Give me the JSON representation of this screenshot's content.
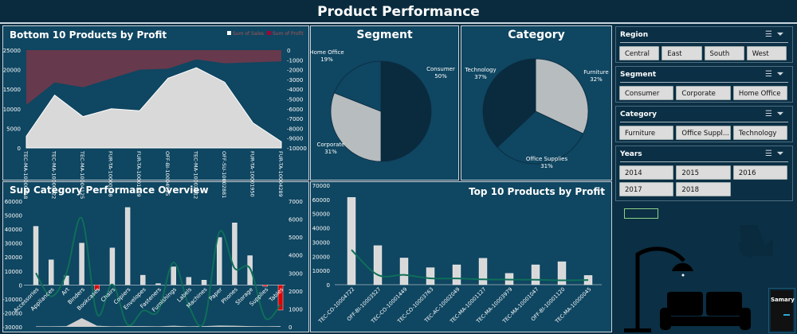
{
  "header": {
    "title": "Product Performance"
  },
  "colors": {
    "panel": "#0f4661",
    "dark": "#0a2b3e",
    "sales": "#d9d9d9",
    "profit": "#b0303c",
    "line": "#0e6e5a",
    "negative": "#e00000"
  },
  "chart_data": [
    {
      "id": "bottom10",
      "type": "area",
      "title": "Bottom 10 Products by Profit",
      "legend": [
        "Sum of Sales",
        "Sum of Profit"
      ],
      "legend_position": "top-right",
      "categories": [
        "TEC-MA-10000418",
        "TEC-MA-10000822",
        "TEC-MA-10004125",
        "FUR-TA-10000198",
        "FUR-TA-10001889",
        "OFF-BI-10004995",
        "TEC-MA-10002412",
        "OFF-SU-10002881",
        "FUR-TA-10001950",
        "FUR-TA-10004289"
      ],
      "series": [
        {
          "name": "Sum of Sales",
          "axis": "left",
          "values": [
            3000,
            13500,
            8000,
            10000,
            9500,
            17800,
            20500,
            16800,
            6400,
            1600
          ]
        },
        {
          "name": "Sum of Profit",
          "axis": "right",
          "values": [
            -5600,
            -3300,
            -3800,
            -2900,
            -2000,
            -1900,
            -950,
            -1350,
            -1250,
            -1150
          ]
        }
      ],
      "ylim": [
        0,
        25000
      ],
      "y2lim": [
        -10000,
        0
      ],
      "yticks": [
        "25000",
        "20000",
        "15000",
        "10000",
        "5000",
        "0"
      ],
      "y2ticks": [
        "0",
        "-1000",
        "-2000",
        "-3000",
        "-4000",
        "-5000",
        "-6000",
        "-7000",
        "-8000",
        "-9000",
        "-10000"
      ]
    },
    {
      "id": "segment",
      "type": "pie",
      "title": "Segment",
      "slices": [
        {
          "label": "Consumer",
          "value": 50,
          "pct": "50%"
        },
        {
          "label": "Corporate",
          "value": 31,
          "pct": "31%"
        },
        {
          "label": "Home Office",
          "value": 19,
          "pct": "19%"
        }
      ]
    },
    {
      "id": "category",
      "type": "pie",
      "title": "Category",
      "slices": [
        {
          "label": "Furniture",
          "value": 32,
          "pct": "32%"
        },
        {
          "label": "Office Supplies",
          "value": 31,
          "pct": "31%"
        },
        {
          "label": "Technology",
          "value": 37,
          "pct": "37%"
        }
      ]
    },
    {
      "id": "subcat",
      "type": "bar",
      "title": "Sup Category Performance Overview",
      "categories": [
        "Accessories",
        "Appliances",
        "Art",
        "Binders",
        "Bookcases",
        "Chairs",
        "Copiers",
        "Envelopes",
        "Fasteners",
        "Furnishings",
        "Labels",
        "Machines",
        "Paper",
        "Phones",
        "Storage",
        "Supplies",
        "Tables"
      ],
      "series": [
        {
          "type": "bar",
          "axis": "left",
          "values": [
            42000,
            18000,
            6500,
            30000,
            -3500,
            26500,
            55500,
            7000,
            1000,
            13000,
            5500,
            3500,
            34000,
            44500,
            21000,
            -1000,
            -18000
          ]
        },
        {
          "type": "line",
          "axis": "right",
          "values": [
            3000,
            1700,
            3000,
            6050,
            720,
            2360,
            120,
            900,
            870,
            3590,
            1170,
            270,
            5280,
            3260,
            3260,
            490,
            1240
          ]
        },
        {
          "type": "area",
          "axis": "right",
          "values": [
            30,
            30,
            40,
            490,
            60,
            30,
            40,
            40,
            30,
            60,
            30,
            40,
            70,
            60,
            40,
            30,
            40
          ]
        }
      ],
      "ylim": [
        -30000,
        60000
      ],
      "y2lim": [
        0,
        7000
      ],
      "yticks": [
        "60000",
        "50000",
        "40000",
        "30000",
        "20000",
        "10000",
        "0",
        "-10000",
        "-20000",
        "-30000"
      ],
      "y2ticks": [
        "7000",
        "6000",
        "5000",
        "4000",
        "3000",
        "2000",
        "1000",
        "0"
      ]
    },
    {
      "id": "top10",
      "type": "bar",
      "title": "Top 10 Products by Profit",
      "categories": [
        "TEC-CO-10004722",
        "OFF-BI-10003527",
        "TEC-CO-10001449",
        "TEC-CO-10003763",
        "TEC-AC-10002049",
        "TEC-MA-10001127",
        "TEC-MA-10003979",
        "TEC-MA-10001047",
        "OFF-BI-10001120",
        "TEC-MA-10000045"
      ],
      "series": [
        {
          "type": "bar",
          "values": [
            61500,
            27500,
            18800,
            12000,
            14000,
            18600,
            8000,
            14000,
            16200,
            6500
          ]
        },
        {
          "type": "line",
          "values": [
            24500,
            6900,
            6900,
            4500,
            4400,
            3800,
            3600,
            3500,
            3100,
            3300
          ]
        }
      ],
      "ylim": [
        0,
        70000
      ],
      "yticks": [
        "70000",
        "60000",
        "50000",
        "40000",
        "30000",
        "20000",
        "10000",
        "0"
      ]
    }
  ],
  "slicers": [
    {
      "title": "Region",
      "items": [
        "Central",
        "East",
        "South",
        "West"
      ]
    },
    {
      "title": "Segment",
      "items": [
        "Consumer",
        "Corporate",
        "Home Office"
      ]
    },
    {
      "title": "Category",
      "items": [
        "Furniture",
        "Office Suppl...",
        "Technology"
      ]
    },
    {
      "title": "Years",
      "items": [
        "2014",
        "2015",
        "2016",
        "2017",
        "2018"
      ]
    }
  ],
  "navigation": {
    "summary_button": "Samary"
  }
}
